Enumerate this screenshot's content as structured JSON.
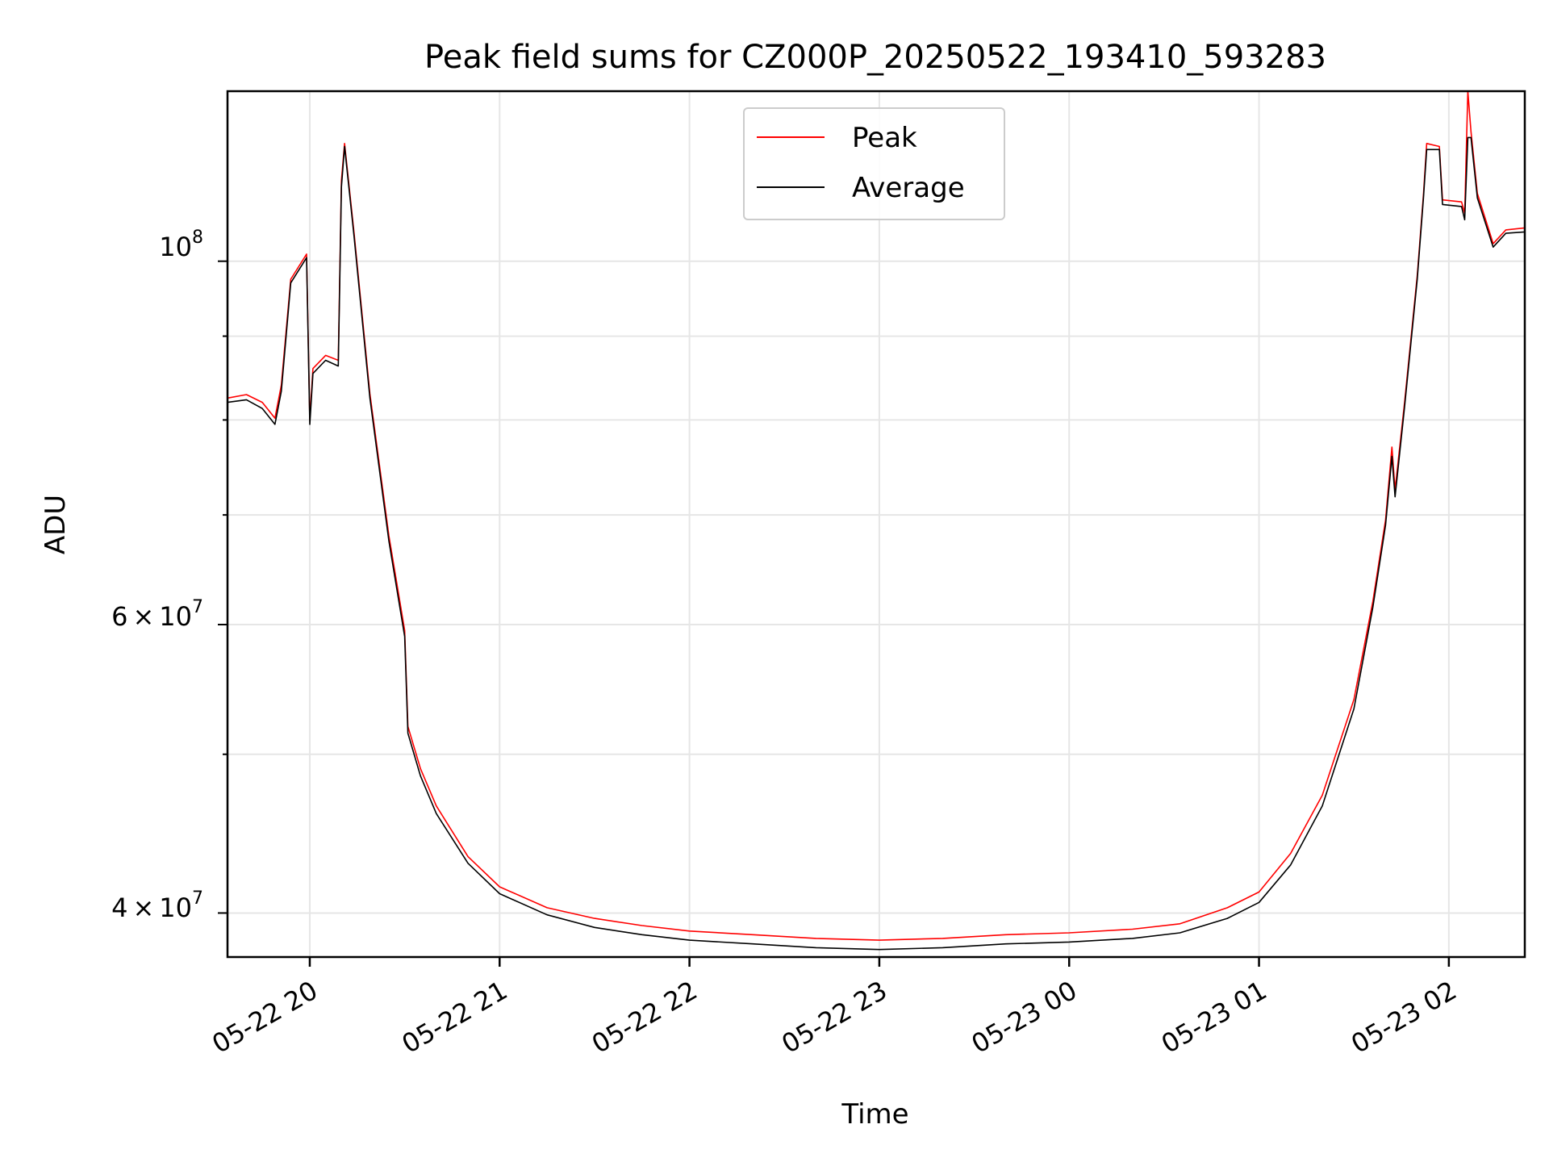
{
  "chart_data": {
    "type": "line",
    "title": "Peak field sums for CZ000P_20250522_193410_593283",
    "xlabel": "Time",
    "ylabel": "ADU",
    "y_scale": "log",
    "grid": true,
    "legend_position": "upper center",
    "xlim": [
      "2025-05-22 19:34",
      "2025-05-23 02:24"
    ],
    "ylim": [
      37600000,
      127000000
    ],
    "x_ticks": [
      "05-22 20",
      "05-22 21",
      "05-22 22",
      "05-22 23",
      "05-23 00",
      "05-23 01",
      "05-23 02"
    ],
    "y_tick_labels": {
      "major": {
        "base": "10",
        "exponent": "8"
      },
      "minor_60m": {
        "mantissa": "6",
        "times": "×",
        "base": "10",
        "exponent": "7"
      },
      "minor_40m": {
        "mantissa": "4",
        "times": "×",
        "base": "10",
        "exponent": "7"
      }
    },
    "series": [
      {
        "name": "Peak",
        "color": "#ff0000",
        "points": [
          [
            "2025-05-22 19:34",
            82500000
          ],
          [
            "2025-05-22 19:40",
            82900000
          ],
          [
            "2025-05-22 19:45",
            82000000
          ],
          [
            "2025-05-22 19:49",
            80200000
          ],
          [
            "2025-05-22 19:51",
            84000000
          ],
          [
            "2025-05-22 19:54",
            97500000
          ],
          [
            "2025-05-22 19:59",
            101000000
          ],
          [
            "2025-05-22 20:00",
            80000000
          ],
          [
            "2025-05-22 20:01",
            86000000
          ],
          [
            "2025-05-22 20:05",
            87600000
          ],
          [
            "2025-05-22 20:09",
            87000000
          ],
          [
            "2025-05-22 20:10",
            112000000
          ],
          [
            "2025-05-22 20:11",
            118000000
          ],
          [
            "2025-05-22 20:14",
            104000000
          ],
          [
            "2025-05-22 20:19",
            83000000
          ],
          [
            "2025-05-22 20:25",
            68000000
          ],
          [
            "2025-05-22 20:30",
            59500000
          ],
          [
            "2025-05-22 20:31",
            52000000
          ],
          [
            "2025-05-22 20:35",
            49000000
          ],
          [
            "2025-05-22 20:40",
            46500000
          ],
          [
            "2025-05-22 20:50",
            43300000
          ],
          [
            "2025-05-22 21:00",
            41500000
          ],
          [
            "2025-05-22 21:15",
            40300000
          ],
          [
            "2025-05-22 21:30",
            39700000
          ],
          [
            "2025-05-22 21:45",
            39300000
          ],
          [
            "2025-05-22 22:00",
            39000000
          ],
          [
            "2025-05-22 22:20",
            38800000
          ],
          [
            "2025-05-22 22:40",
            38600000
          ],
          [
            "2025-05-22 23:00",
            38500000
          ],
          [
            "2025-05-22 23:20",
            38600000
          ],
          [
            "2025-05-22 23:40",
            38800000
          ],
          [
            "2025-05-23 00:00",
            38900000
          ],
          [
            "2025-05-23 00:20",
            39100000
          ],
          [
            "2025-05-23 00:35",
            39400000
          ],
          [
            "2025-05-23 00:50",
            40300000
          ],
          [
            "2025-05-23 01:00",
            41200000
          ],
          [
            "2025-05-23 01:10",
            43500000
          ],
          [
            "2025-05-23 01:20",
            47200000
          ],
          [
            "2025-05-23 01:30",
            54000000
          ],
          [
            "2025-05-23 01:36",
            62000000
          ],
          [
            "2025-05-23 01:40",
            69500000
          ],
          [
            "2025-05-23 01:42",
            77000000
          ],
          [
            "2025-05-23 01:43",
            72500000
          ],
          [
            "2025-05-23 01:46",
            82000000
          ],
          [
            "2025-05-23 01:50",
            98000000
          ],
          [
            "2025-05-23 01:52",
            110000000
          ],
          [
            "2025-05-23 01:53",
            118000000
          ],
          [
            "2025-05-23 01:57",
            117500000
          ],
          [
            "2025-05-23 01:58",
            109000000
          ],
          [
            "2025-05-23 02:04",
            108700000
          ],
          [
            "2025-05-23 02:05",
            107000000
          ],
          [
            "2025-05-23 02:06",
            127000000
          ],
          [
            "2025-05-23 02:07",
            120000000
          ],
          [
            "2025-05-23 02:09",
            110000000
          ],
          [
            "2025-05-23 02:14",
            102500000
          ],
          [
            "2025-05-23 02:18",
            104500000
          ],
          [
            "2025-05-23 02:24",
            104800000
          ]
        ]
      },
      {
        "name": "Average",
        "color": "#000000",
        "points": [
          [
            "2025-05-22 19:34",
            82000000
          ],
          [
            "2025-05-22 19:40",
            82300000
          ],
          [
            "2025-05-22 19:45",
            81300000
          ],
          [
            "2025-05-22 19:49",
            79500000
          ],
          [
            "2025-05-22 19:51",
            83300000
          ],
          [
            "2025-05-22 19:54",
            97000000
          ],
          [
            "2025-05-22 19:59",
            100500000
          ],
          [
            "2025-05-22 20:00",
            79500000
          ],
          [
            "2025-05-22 20:01",
            85400000
          ],
          [
            "2025-05-22 20:05",
            87000000
          ],
          [
            "2025-05-22 20:09",
            86300000
          ],
          [
            "2025-05-22 20:10",
            111000000
          ],
          [
            "2025-05-22 20:11",
            117500000
          ],
          [
            "2025-05-22 20:14",
            103500000
          ],
          [
            "2025-05-22 20:19",
            82500000
          ],
          [
            "2025-05-22 20:25",
            67500000
          ],
          [
            "2025-05-22 20:30",
            59000000
          ],
          [
            "2025-05-22 20:31",
            51500000
          ],
          [
            "2025-05-22 20:35",
            48500000
          ],
          [
            "2025-05-22 20:40",
            46000000
          ],
          [
            "2025-05-22 20:50",
            42900000
          ],
          [
            "2025-05-22 21:00",
            41100000
          ],
          [
            "2025-05-22 21:15",
            39900000
          ],
          [
            "2025-05-22 21:30",
            39200000
          ],
          [
            "2025-05-22 21:45",
            38800000
          ],
          [
            "2025-05-22 22:00",
            38500000
          ],
          [
            "2025-05-22 22:20",
            38300000
          ],
          [
            "2025-05-22 22:40",
            38100000
          ],
          [
            "2025-05-22 23:00",
            38000000
          ],
          [
            "2025-05-22 23:20",
            38100000
          ],
          [
            "2025-05-22 23:40",
            38300000
          ],
          [
            "2025-05-23 00:00",
            38400000
          ],
          [
            "2025-05-23 00:20",
            38600000
          ],
          [
            "2025-05-23 00:35",
            38900000
          ],
          [
            "2025-05-23 00:50",
            39700000
          ],
          [
            "2025-05-23 01:00",
            40600000
          ],
          [
            "2025-05-23 01:10",
            42800000
          ],
          [
            "2025-05-23 01:20",
            46500000
          ],
          [
            "2025-05-23 01:30",
            53300000
          ],
          [
            "2025-05-23 01:36",
            61500000
          ],
          [
            "2025-05-23 01:40",
            69000000
          ],
          [
            "2025-05-23 01:42",
            76000000
          ],
          [
            "2025-05-23 01:43",
            71800000
          ],
          [
            "2025-05-23 01:46",
            81500000
          ],
          [
            "2025-05-23 01:50",
            97500000
          ],
          [
            "2025-05-23 01:52",
            109500000
          ],
          [
            "2025-05-23 01:53",
            117000000
          ],
          [
            "2025-05-23 01:57",
            117000000
          ],
          [
            "2025-05-23 01:58",
            108300000
          ],
          [
            "2025-05-23 02:04",
            108000000
          ],
          [
            "2025-05-23 02:05",
            106000000
          ],
          [
            "2025-05-23 02:06",
            119000000
          ],
          [
            "2025-05-23 02:07",
            119000000
          ],
          [
            "2025-05-23 02:09",
            109300000
          ],
          [
            "2025-05-23 02:14",
            102000000
          ],
          [
            "2025-05-23 02:18",
            104000000
          ],
          [
            "2025-05-23 02:24",
            104200000
          ]
        ]
      }
    ]
  }
}
